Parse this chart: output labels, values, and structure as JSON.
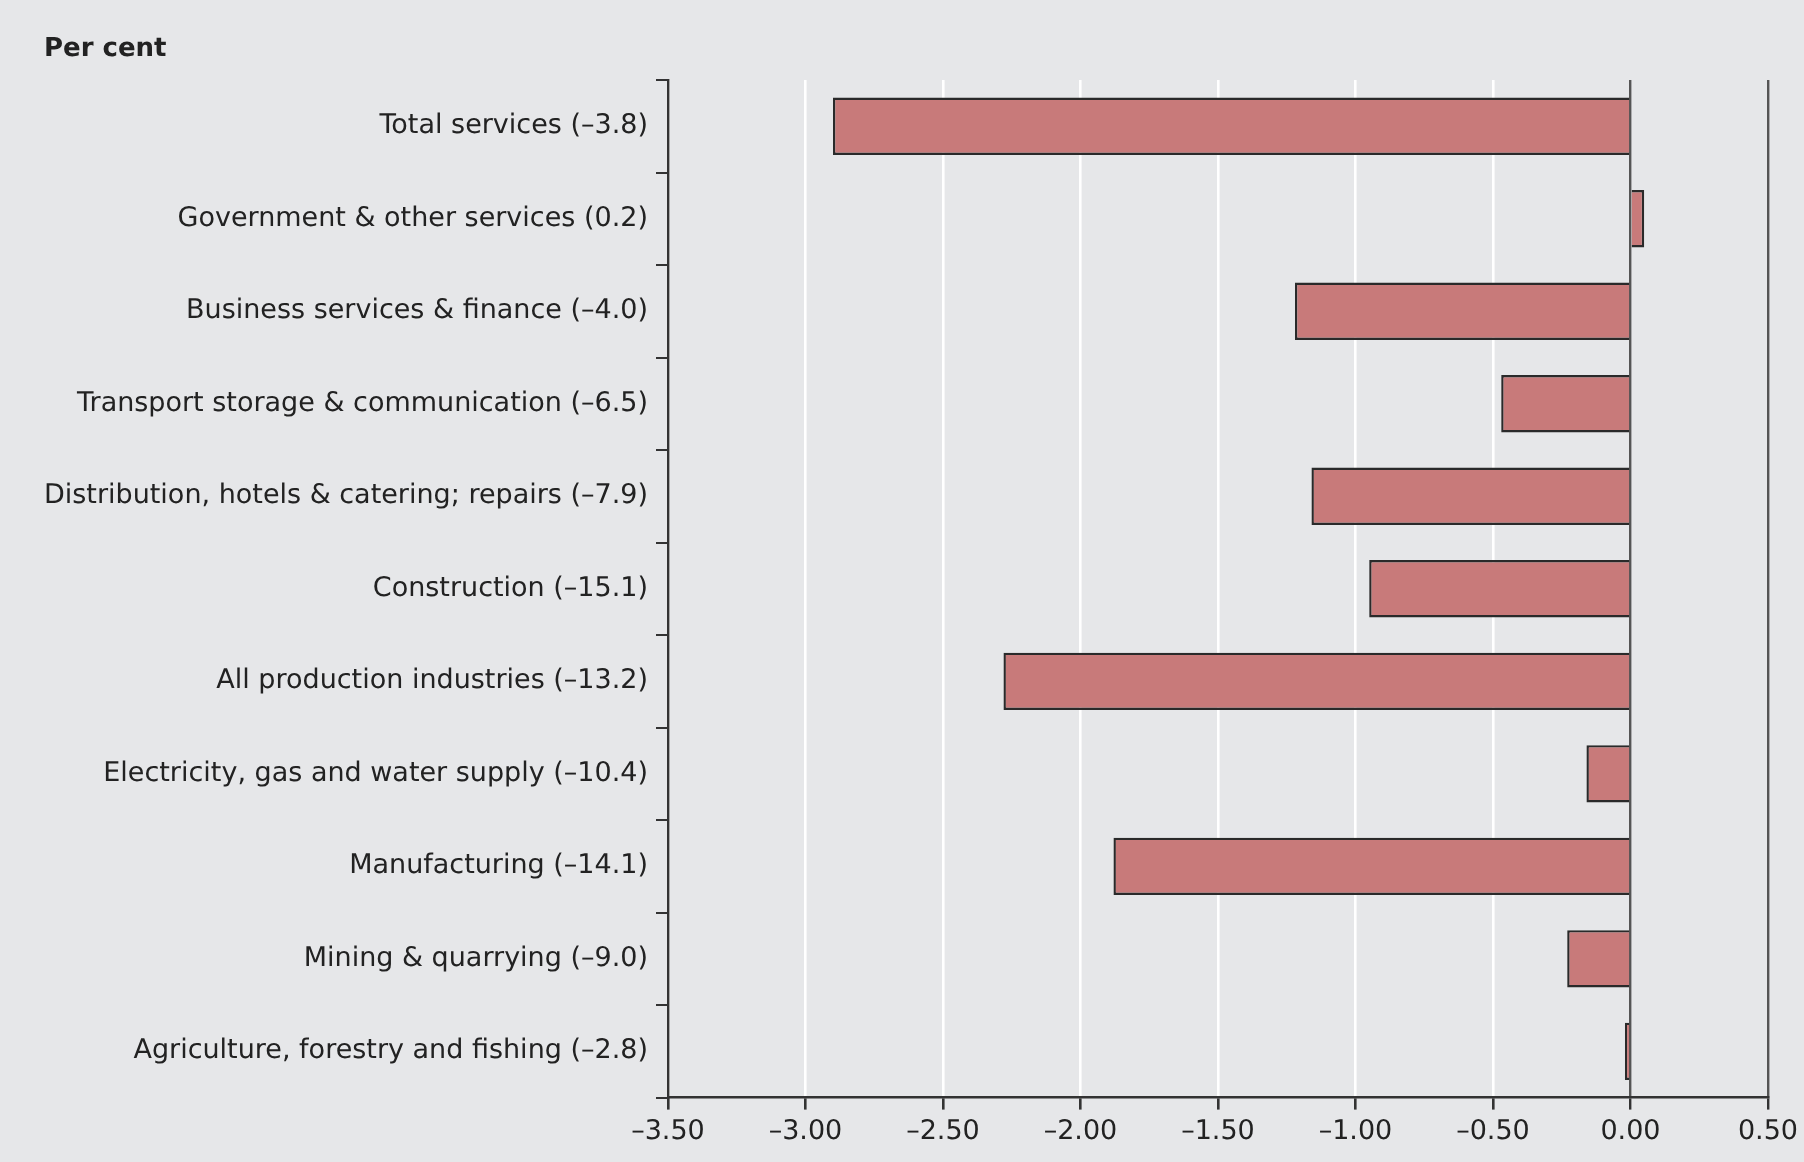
{
  "chart_data": {
    "type": "bar",
    "orientation": "horizontal",
    "xlabel": "Per cent",
    "categories": [
      "Total services (–3.8)",
      "Government & other services (0.2)",
      "Business services & finance (–4.0)",
      "Transport storage & communication (–6.5)",
      "Distribution, hotels & catering; repairs (–7.9)",
      "Construction (–15.1)",
      "All production industries (–13.2)",
      "Electricity, gas and water supply (–10.4)",
      "Manufacturing (–14.1)",
      "Mining & quarrying (–9.0)",
      "Agriculture, forestry and fishing (–2.8)"
    ],
    "values": [
      -2.9,
      0.05,
      -1.22,
      -0.47,
      -1.16,
      -0.95,
      -2.28,
      -0.16,
      -1.88,
      -0.23,
      -0.02
    ],
    "color": "#c87a7a",
    "xlim": [
      -3.5,
      0.5
    ],
    "xticks": [
      {
        "value": -3.5,
        "label": "–3.50"
      },
      {
        "value": -3,
        "label": "–3.00"
      },
      {
        "value": -2.5,
        "label": "–2.50"
      },
      {
        "value": -2,
        "label": "–2.00"
      },
      {
        "value": -1.5,
        "label": "–1.50"
      },
      {
        "value": -1,
        "label": "–1.00"
      },
      {
        "value": -0.5,
        "label": "–0.50"
      },
      {
        "value": 0,
        "label": "0.00"
      },
      {
        "value": 0.5,
        "label": "0.50"
      }
    ],
    "grid": "x",
    "legend": false
  }
}
